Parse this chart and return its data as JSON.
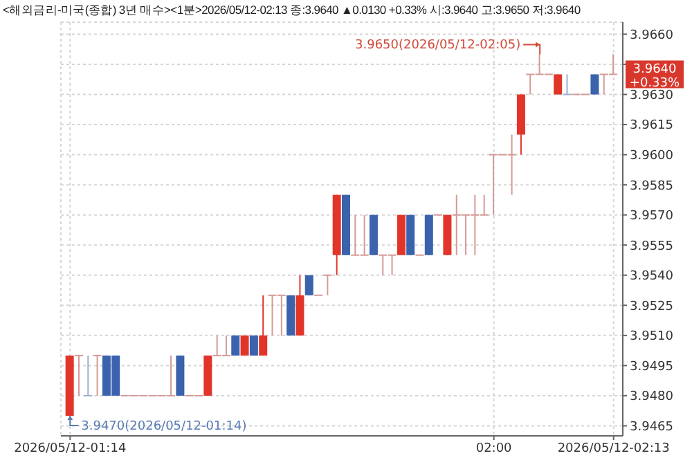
{
  "chart_data": {
    "type": "candlestick",
    "title": "<해외금리-미국(종합) 3년 매수><1분>2026/05/12-02:13 종:3.9640 ▲0.0130 +0.33% 시:3.9640 고:3.9650 저:3.9640",
    "x": [
      "2026-05-12T01:14",
      "2026-05-12T01:15",
      "2026-05-12T01:16",
      "2026-05-12T01:17",
      "2026-05-12T01:18",
      "2026-05-12T01:19",
      "2026-05-12T01:20",
      "2026-05-12T01:21",
      "2026-05-12T01:22",
      "2026-05-12T01:23",
      "2026-05-12T01:24",
      "2026-05-12T01:25",
      "2026-05-12T01:26",
      "2026-05-12T01:27",
      "2026-05-12T01:28",
      "2026-05-12T01:29",
      "2026-05-12T01:30",
      "2026-05-12T01:31",
      "2026-05-12T01:32",
      "2026-05-12T01:33",
      "2026-05-12T01:34",
      "2026-05-12T01:35",
      "2026-05-12T01:36",
      "2026-05-12T01:37",
      "2026-05-12T01:38",
      "2026-05-12T01:39",
      "2026-05-12T01:40",
      "2026-05-12T01:41",
      "2026-05-12T01:42",
      "2026-05-12T01:43",
      "2026-05-12T01:44",
      "2026-05-12T01:45",
      "2026-05-12T01:46",
      "2026-05-12T01:47",
      "2026-05-12T01:48",
      "2026-05-12T01:49",
      "2026-05-12T01:50",
      "2026-05-12T01:51",
      "2026-05-12T01:52",
      "2026-05-12T01:53",
      "2026-05-12T01:54",
      "2026-05-12T01:55",
      "2026-05-12T01:56",
      "2026-05-12T01:57",
      "2026-05-12T01:58",
      "2026-05-12T01:59",
      "2026-05-12T02:00",
      "2026-05-12T02:01",
      "2026-05-12T02:02",
      "2026-05-12T02:03",
      "2026-05-12T02:04",
      "2026-05-12T02:05",
      "2026-05-12T02:06",
      "2026-05-12T02:07",
      "2026-05-12T02:08",
      "2026-05-12T02:09",
      "2026-05-12T02:10",
      "2026-05-12T02:11",
      "2026-05-12T02:12",
      "2026-05-12T02:13"
    ],
    "ohlc": [
      [
        3.947,
        3.95,
        3.947,
        3.95
      ],
      [
        3.95,
        3.95,
        3.948,
        3.95
      ],
      [
        3.948,
        3.95,
        3.948,
        3.948
      ],
      [
        3.95,
        3.95,
        3.948,
        3.95
      ],
      [
        3.95,
        3.95,
        3.948,
        3.948
      ],
      [
        3.95,
        3.95,
        3.948,
        3.948
      ],
      [
        3.948,
        3.948,
        3.948,
        3.948
      ],
      [
        3.948,
        3.948,
        3.948,
        3.948
      ],
      [
        3.948,
        3.948,
        3.948,
        3.948
      ],
      [
        3.948,
        3.948,
        3.948,
        3.948
      ],
      [
        3.948,
        3.948,
        3.948,
        3.948
      ],
      [
        3.948,
        3.95,
        3.948,
        3.948
      ],
      [
        3.95,
        3.95,
        3.948,
        3.948
      ],
      [
        3.948,
        3.948,
        3.948,
        3.948
      ],
      [
        3.948,
        3.948,
        3.948,
        3.948
      ],
      [
        3.948,
        3.95,
        3.948,
        3.95
      ],
      [
        3.95,
        3.951,
        3.95,
        3.95
      ],
      [
        3.95,
        3.951,
        3.95,
        3.95
      ],
      [
        3.951,
        3.951,
        3.95,
        3.95
      ],
      [
        3.95,
        3.951,
        3.95,
        3.951
      ],
      [
        3.951,
        3.951,
        3.95,
        3.95
      ],
      [
        3.95,
        3.953,
        3.95,
        3.951
      ],
      [
        3.953,
        3.953,
        3.951,
        3.953
      ],
      [
        3.953,
        3.953,
        3.951,
        3.953
      ],
      [
        3.953,
        3.953,
        3.951,
        3.951
      ],
      [
        3.951,
        3.954,
        3.951,
        3.953
      ],
      [
        3.954,
        3.954,
        3.953,
        3.953
      ],
      [
        3.953,
        3.953,
        3.953,
        3.953
      ],
      [
        3.954,
        3.954,
        3.953,
        3.954
      ],
      [
        3.955,
        3.958,
        3.954,
        3.958
      ],
      [
        3.958,
        3.958,
        3.955,
        3.955
      ],
      [
        3.955,
        3.957,
        3.955,
        3.955
      ],
      [
        3.955,
        3.957,
        3.955,
        3.955
      ],
      [
        3.957,
        3.957,
        3.955,
        3.955
      ],
      [
        3.955,
        3.955,
        3.954,
        3.955
      ],
      [
        3.955,
        3.955,
        3.954,
        3.955
      ],
      [
        3.955,
        3.957,
        3.955,
        3.957
      ],
      [
        3.957,
        3.957,
        3.955,
        3.955
      ],
      [
        3.955,
        3.955,
        3.955,
        3.955
      ],
      [
        3.957,
        3.957,
        3.955,
        3.955
      ],
      [
        3.957,
        3.957,
        3.957,
        3.957
      ],
      [
        3.955,
        3.957,
        3.955,
        3.957
      ],
      [
        3.957,
        3.958,
        3.955,
        3.957
      ],
      [
        3.957,
        3.957,
        3.955,
        3.957
      ],
      [
        3.957,
        3.958,
        3.955,
        3.957
      ],
      [
        3.957,
        3.958,
        3.957,
        3.957
      ],
      [
        3.96,
        3.96,
        3.957,
        3.96
      ],
      [
        3.96,
        3.96,
        3.96,
        3.96
      ],
      [
        3.96,
        3.961,
        3.958,
        3.96
      ],
      [
        3.961,
        3.963,
        3.96,
        3.963
      ],
      [
        3.964,
        3.964,
        3.963,
        3.964
      ],
      [
        3.964,
        3.965,
        3.964,
        3.964
      ],
      [
        3.964,
        3.964,
        3.964,
        3.964
      ],
      [
        3.963,
        3.964,
        3.963,
        3.964
      ],
      [
        3.963,
        3.964,
        3.963,
        3.963
      ],
      [
        3.963,
        3.963,
        3.963,
        3.963
      ],
      [
        3.963,
        3.963,
        3.963,
        3.963
      ],
      [
        3.964,
        3.964,
        3.963,
        3.963
      ],
      [
        3.964,
        3.964,
        3.963,
        3.964
      ],
      [
        3.964,
        3.965,
        3.964,
        3.964
      ]
    ],
    "colors": [
      "#e2352a",
      "#d49a96",
      "#9fb0cf",
      "#d49a96",
      "#3b63ad",
      "#3b63ad",
      "#d49a96",
      "#d49a96",
      "#d49a96",
      "#d49a96",
      "#d49a96",
      "#d49a96",
      "#3b63ad",
      "#d49a96",
      "#d49a96",
      "#e2352a",
      "#d49a96",
      "#d49a96",
      "#3b63ad",
      "#e2352a",
      "#3b63ad",
      "#e2352a",
      "#d49a96",
      "#d49a96",
      "#3b63ad",
      "#e2352a",
      "#3b63ad",
      "#d49a96",
      "#d49a96",
      "#e2352a",
      "#3b63ad",
      "#d49a96",
      "#d49a96",
      "#3b63ad",
      "#d49a96",
      "#d49a96",
      "#e2352a",
      "#3b63ad",
      "#d49a96",
      "#3b63ad",
      "#d49a96",
      "#e2352a",
      "#d49a96",
      "#d49a96",
      "#d49a96",
      "#d49a96",
      "#d49a96",
      "#d49a96",
      "#d49a96",
      "#e2352a",
      "#d49a96",
      "#d49a96",
      "#d49a96",
      "#e2352a",
      "#9fb0cf",
      "#d49a96",
      "#d49a96",
      "#3b63ad",
      "#d49a96",
      "#d49a96"
    ],
    "xlim": [
      "2026-05-12T01:13",
      "2026-05-12T02:14"
    ],
    "xticks": [
      {
        "value": "2026-05-12T01:14",
        "label": "2026/05/12-01:14"
      },
      {
        "value": "2026-05-12T02:00",
        "label": "02:00"
      },
      {
        "value": "2026-05-12T02:13",
        "label": "2026/05/12-02:13"
      }
    ],
    "ylim": [
      3.946,
      3.9666
    ],
    "yticks": [
      {
        "value": 3.9465,
        "label": "3.9465"
      },
      {
        "value": 3.948,
        "label": "3.9480"
      },
      {
        "value": 3.9495,
        "label": "3.9495"
      },
      {
        "value": 3.951,
        "label": "3.9510"
      },
      {
        "value": 3.9525,
        "label": "3.9525"
      },
      {
        "value": 3.954,
        "label": "3.9540"
      },
      {
        "value": 3.9555,
        "label": "3.9555"
      },
      {
        "value": 3.957,
        "label": "3.9570"
      },
      {
        "value": 3.9585,
        "label": "3.9585"
      },
      {
        "value": 3.96,
        "label": "3.9600"
      },
      {
        "value": 3.9615,
        "label": "3.9615"
      },
      {
        "value": 3.963,
        "label": "3.9630"
      },
      {
        "value": 3.9645,
        "label": null
      },
      {
        "value": 3.966,
        "label": "3.9660"
      }
    ],
    "grid": true,
    "annotations": [
      {
        "text": "3.9650(2026/05/12-02:05)",
        "x": "2026-05-12T02:05",
        "y": 3.965
      },
      {
        "text": "3.9470(2026/05/12-01:14)",
        "x": "2026-05-12T01:14",
        "y": 3.947
      },
      {
        "text": "3.9640 +0.33%",
        "x": "2026-05-12T02:13",
        "y": 3.964
      }
    ]
  }
}
